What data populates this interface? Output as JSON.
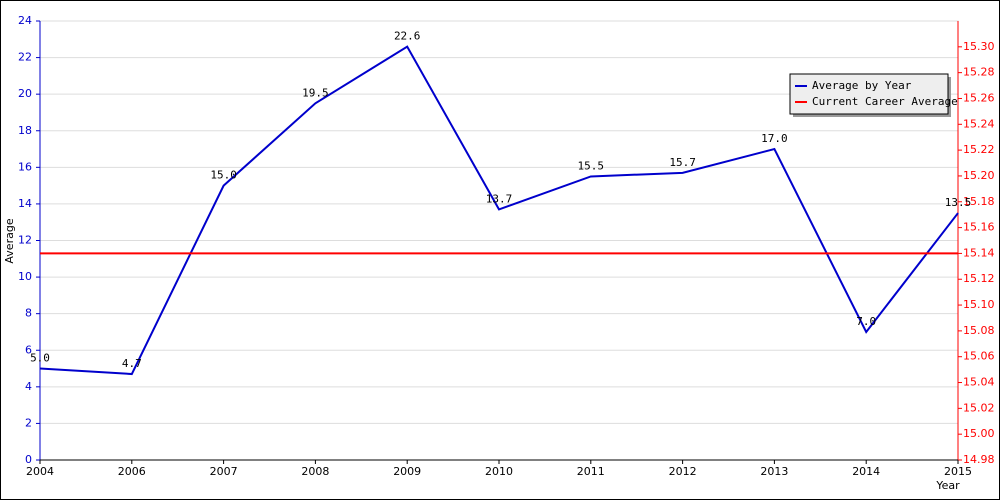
{
  "chart_data": {
    "type": "line",
    "categories": [
      "2004",
      "2006",
      "2007",
      "2008",
      "2009",
      "2010",
      "2011",
      "2012",
      "2013",
      "2014",
      "2015"
    ],
    "y_label": "Average",
    "x_label": "Year",
    "series": [
      {
        "name": "Average by Year",
        "color": "#0000cc",
        "axis": "y",
        "values": [
          5.0,
          4.7,
          15.0,
          19.5,
          22.6,
          13.7,
          15.5,
          15.7,
          17.0,
          7.0,
          13.5
        ],
        "value_labels": [
          "5.0",
          "4.7",
          "15.0",
          "19.5",
          "22.6",
          "13.7",
          "15.5",
          "15.7",
          "17.0",
          "7.0",
          "13.5"
        ]
      },
      {
        "name": "Current Career Average",
        "color": "#ff0000",
        "axis": "y2",
        "values": [
          15.14,
          15.14,
          15.14,
          15.14,
          15.14,
          15.14,
          15.14,
          15.14,
          15.14,
          15.14,
          15.14
        ]
      }
    ],
    "ylim": [
      0,
      24
    ],
    "yticks": [
      0,
      2,
      4,
      6,
      8,
      10,
      12,
      14,
      16,
      18,
      20,
      22,
      24
    ],
    "y2lim": [
      14.98,
      15.32
    ],
    "y2ticks": [
      14.98,
      {
        "value": 15.0,
        "label": "15.00"
      },
      15.02,
      15.04,
      15.06,
      15.08,
      {
        "value": 15.1,
        "label": "15.10"
      },
      15.12,
      15.14,
      15.16,
      15.18,
      {
        "value": 15.2,
        "label": "15.20"
      },
      15.22,
      15.24,
      15.26,
      15.28,
      {
        "value": 15.3,
        "label": "15.30"
      }
    ],
    "grid": true,
    "legend": "top-right",
    "left_axis_color": "#0000cc",
    "right_axis_color": "#ff0000"
  }
}
